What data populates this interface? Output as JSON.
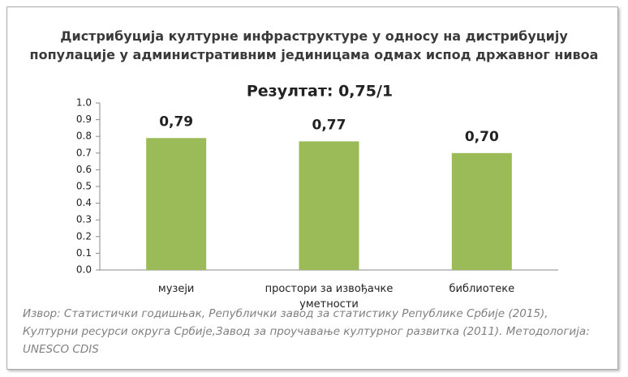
{
  "chart_data": {
    "type": "bar",
    "title": "Дистрибуција културне инфраструктуре у односу на дистрибуцију популације у административним јединицама одмах испод државног нивоа",
    "subtitle": "Резултат: 0,75/1",
    "categories": [
      "музеји",
      "простори за извођачке уметности",
      "библиотеке"
    ],
    "values": [
      0.79,
      0.77,
      0.7
    ],
    "value_labels": [
      "0,79",
      "0,77",
      "0,70"
    ],
    "color": "#9bbb59",
    "ylim": [
      0,
      1
    ],
    "yticks": [
      {
        "value": 0,
        "label": "0.0"
      },
      0.1,
      0.2,
      0.3,
      0.4,
      0.5,
      0.6,
      0.7,
      0.8,
      0.9,
      {
        "value": 1,
        "label": "1.0"
      }
    ],
    "grid": false,
    "source": "Извор: Статистички годишњак, Републички завод за статистику Републике Србије (2015), Културни ресурси округа Србије,Завод за проучавање културног развитка (2011).  Методологија: UNESCO CDIS"
  }
}
